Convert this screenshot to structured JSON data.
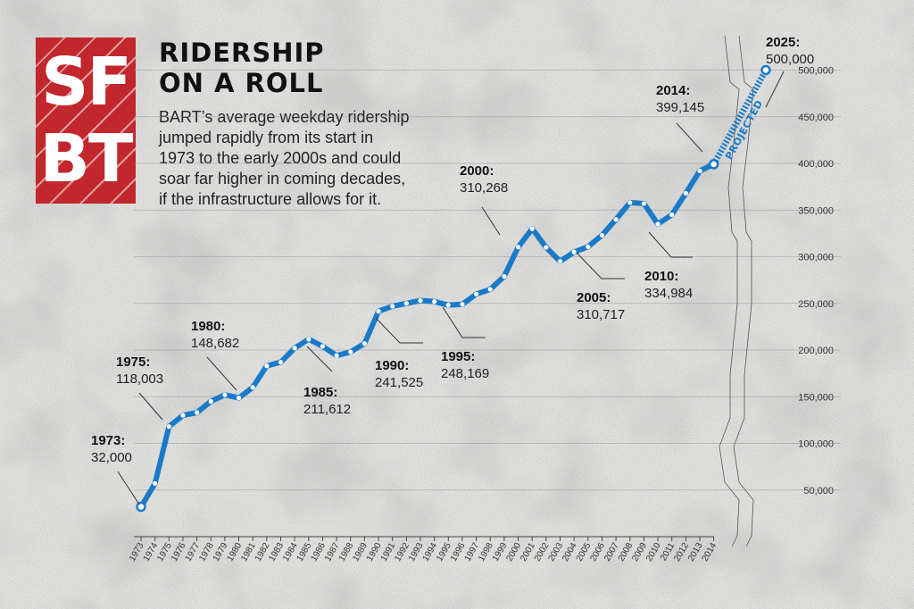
{
  "logo": {
    "line1": "SF",
    "line2": "BT"
  },
  "header": {
    "title_line1": "RIDERSHIP",
    "title_line2": "ON A ROLL",
    "subtitle_lines": [
      "BART’s average weekday ridership",
      "jumped rapidly from its start in",
      "1973 to the early 2000s and could",
      "soar far higher in coming decades,",
      "if the infrastructure allows for it."
    ]
  },
  "colors": {
    "background": "#e4e4e2",
    "line": "#1a7ac8",
    "marker_fill": "#ffffff",
    "logo": "#c1272d",
    "text": "#222222",
    "grid": "#9a9a9a"
  },
  "chart_data": {
    "type": "line",
    "ylim": [
      0,
      550000
    ],
    "grid": true,
    "ytick_labels": [
      "50,000",
      "100,000",
      "150,000",
      "200,000",
      "250,000",
      "300,000",
      "350,000",
      "400,000",
      "450,000",
      "500,000"
    ],
    "ytick_values": [
      50000,
      100000,
      150000,
      200000,
      250000,
      300000,
      350000,
      400000,
      450000,
      500000
    ],
    "x": [
      "1973",
      "1974",
      "1975",
      "1976",
      "1977",
      "1978",
      "1979",
      "1980",
      "1981",
      "1982",
      "1983",
      "1984",
      "1985",
      "1986",
      "1987",
      "1988",
      "1989",
      "1990",
      "1991",
      "1992",
      "1993",
      "1994",
      "1995",
      "1996",
      "1997",
      "1998",
      "1999",
      "2000",
      "2001",
      "2002",
      "2003",
      "2004",
      "2005",
      "2006",
      "2007",
      "2008",
      "2009",
      "2010",
      "2011",
      "2012",
      "2013",
      "2014"
    ],
    "series": [
      {
        "values": [
          32000,
          57000,
          118003,
          130000,
          133000,
          145000,
          152000,
          148682,
          160000,
          183000,
          187000,
          202000,
          211612,
          204000,
          194000,
          198000,
          207000,
          241525,
          247000,
          250000,
          253000,
          252000,
          248169,
          249000,
          260000,
          265000,
          279000,
          310268,
          330000,
          310000,
          295000,
          305000,
          310717,
          323000,
          340000,
          358000,
          357000,
          334984,
          345000,
          368000,
          392000,
          399145
        ]
      }
    ],
    "projection": {
      "label": "PROJECTED",
      "from_x": "2014",
      "to_x": "2025",
      "from_y": 399145,
      "to_y": 500000
    },
    "callouts": [
      {
        "year": "1973",
        "value": 32000,
        "year_label": "1973:",
        "value_label": "32,000"
      },
      {
        "year": "1975",
        "value": 118003,
        "year_label": "1975:",
        "value_label": "118,003"
      },
      {
        "year": "1980",
        "value": 148682,
        "year_label": "1980:",
        "value_label": "148,682"
      },
      {
        "year": "1985",
        "value": 211612,
        "year_label": "1985:",
        "value_label": "211,612"
      },
      {
        "year": "1990",
        "value": 241525,
        "year_label": "1990:",
        "value_label": "241,525"
      },
      {
        "year": "1995",
        "value": 248169,
        "year_label": "1995:",
        "value_label": "248,169"
      },
      {
        "year": "2000",
        "value": 310268,
        "year_label": "2000:",
        "value_label": "310,268"
      },
      {
        "year": "2005",
        "value": 310717,
        "year_label": "2005:",
        "value_label": "310,717"
      },
      {
        "year": "2010",
        "value": 334984,
        "year_label": "2010:",
        "value_label": "334,984"
      },
      {
        "year": "2014",
        "value": 399145,
        "year_label": "2014:",
        "value_label": "399,145"
      },
      {
        "year": "2025",
        "value": 500000,
        "year_label": "2025:",
        "value_label": "500,000"
      }
    ]
  }
}
